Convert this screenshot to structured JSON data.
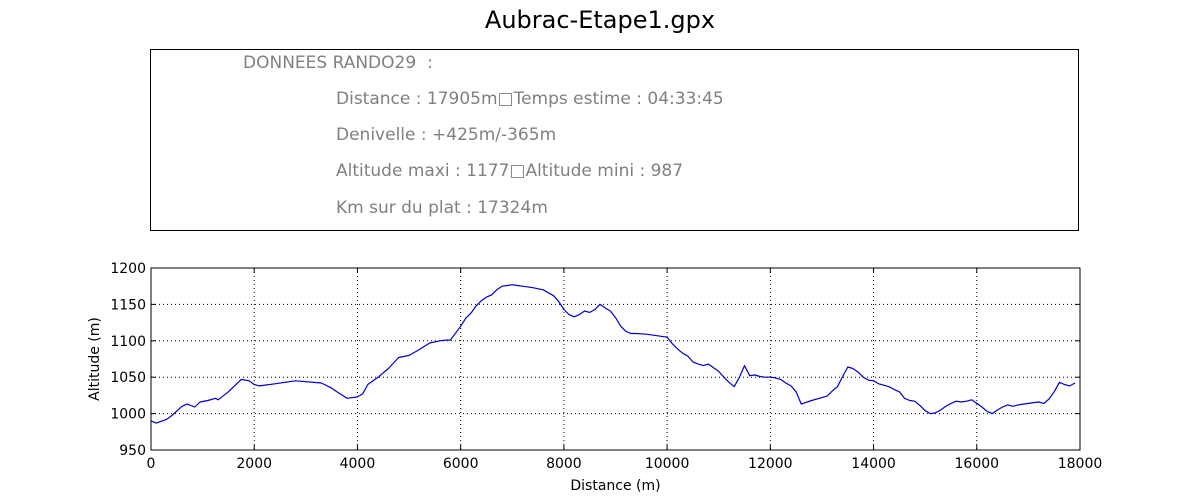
{
  "title": "Aubrac-Etape1.gpx",
  "info": {
    "header": "DONNEES RANDO29  :",
    "line1": "Distance : 17905m□Temps estime : 04:33:45",
    "line2": "Denivelle : +425m/-365m",
    "line3": "Altitude maxi : 1177□Altitude mini : 987",
    "line4": "Km sur du plat : 17324m"
  },
  "chart_data": {
    "type": "line",
    "xlabel": "Distance (m)",
    "ylabel": "Altitude (m)",
    "xlim": [
      0,
      18000
    ],
    "ylim": [
      950,
      1200
    ],
    "grid": true,
    "xticks": [
      0,
      2000,
      4000,
      6000,
      8000,
      10000,
      12000,
      14000,
      16000,
      18000
    ],
    "yticks": [
      950,
      1000,
      1050,
      1100,
      1150,
      1200
    ],
    "series": [
      {
        "color": "#0000cc",
        "x": [
          0,
          100,
          300,
          400,
          600,
          700,
          850,
          950,
          1100,
          1250,
          1300,
          1500,
          1750,
          1900,
          2000,
          2100,
          2400,
          2800,
          3300,
          3500,
          3600,
          3800,
          4000,
          4100,
          4200,
          4400,
          4600,
          4800,
          5000,
          5200,
          5400,
          5600,
          5700,
          5800,
          6000,
          6100,
          6200,
          6300,
          6400,
          6500,
          6600,
          6700,
          6800,
          6900,
          7000,
          7100,
          7200,
          7400,
          7600,
          7800,
          7900,
          8000,
          8100,
          8200,
          8300,
          8400,
          8500,
          8600,
          8700,
          8800,
          8900,
          9000,
          9100,
          9200,
          9300,
          9400,
          9600,
          9800,
          10000,
          10100,
          10200,
          10300,
          10400,
          10500,
          10600,
          10700,
          10800,
          10900,
          11000,
          11100,
          11200,
          11300,
          11400,
          11500,
          11600,
          11700,
          11800,
          11900,
          12000,
          12100,
          12200,
          12300,
          12400,
          12500,
          12600,
          12800,
          13000,
          13100,
          13200,
          13300,
          13400,
          13500,
          13600,
          13700,
          13800,
          13900,
          14000,
          14100,
          14200,
          14300,
          14400,
          14500,
          14600,
          14700,
          14800,
          14900,
          15000,
          15100,
          15200,
          15300,
          15400,
          15500,
          15600,
          15700,
          15800,
          15900,
          16000,
          16100,
          16200,
          16300,
          16400,
          16500,
          16600,
          16700,
          16800,
          17000,
          17200,
          17300,
          17400,
          17500,
          17600,
          17700,
          17800,
          17905
        ],
        "y": [
          990,
          987,
          992,
          997,
          1010,
          1013,
          1009,
          1016,
          1018,
          1021,
          1019,
          1030,
          1047,
          1045,
          1040,
          1038,
          1041,
          1045,
          1042,
          1035,
          1030,
          1021,
          1023,
          1027,
          1040,
          1050,
          1062,
          1077,
          1080,
          1088,
          1097,
          1100,
          1101,
          1101,
          1120,
          1131,
          1138,
          1148,
          1155,
          1160,
          1163,
          1170,
          1175,
          1176,
          1177,
          1176,
          1175,
          1173,
          1170,
          1162,
          1154,
          1143,
          1136,
          1133,
          1136,
          1141,
          1139,
          1143,
          1150,
          1145,
          1141,
          1132,
          1120,
          1113,
          1110,
          1110,
          1109,
          1107,
          1105,
          1096,
          1089,
          1083,
          1079,
          1071,
          1068,
          1066,
          1068,
          1063,
          1058,
          1050,
          1043,
          1037,
          1050,
          1066,
          1052,
          1053,
          1051,
          1050,
          1050,
          1049,
          1047,
          1042,
          1038,
          1030,
          1013,
          1018,
          1022,
          1024,
          1031,
          1037,
          1051,
          1064,
          1062,
          1057,
          1050,
          1046,
          1045,
          1041,
          1039,
          1037,
          1033,
          1030,
          1021,
          1018,
          1017,
          1011,
          1004,
          1000,
          1001,
          1005,
          1010,
          1014,
          1017,
          1016,
          1017,
          1019,
          1014,
          1009,
          1003,
          1000,
          1005,
          1009,
          1012,
          1010,
          1012,
          1014,
          1016,
          1014,
          1020,
          1030,
          1043,
          1040,
          1038,
          1042
        ]
      }
    ]
  }
}
